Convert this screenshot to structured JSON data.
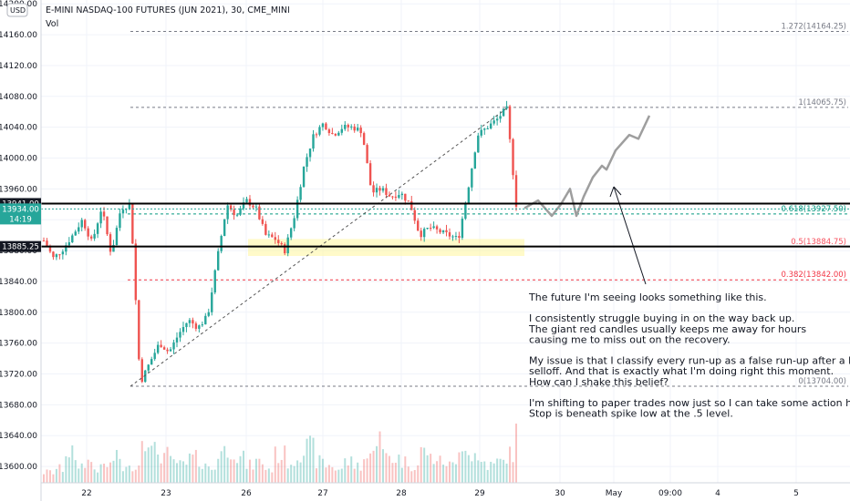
{
  "title": "E-MINI NASDAQ-100 FUTURES (JUN 2021), 30, CME_MINI",
  "vol_label": "Vol",
  "currency": "USD",
  "chart_data": {
    "type": "candlestick",
    "symbol": "E-MINI NASDAQ-100 FUTURES (JUN 2021), 30, CME_MINI",
    "timeframe": "30",
    "xlabels": [
      "22",
      "23",
      "26",
      "27",
      "28",
      "29",
      "30",
      "May",
      "09:00",
      "4",
      "5"
    ],
    "yticks": [
      13600,
      13640,
      13680,
      13720,
      13760,
      13800,
      13840,
      13880,
      13920,
      13960,
      14000,
      14040,
      14080,
      14120,
      14160,
      14200
    ],
    "ylim": [
      13580,
      14205
    ],
    "price_labels": [
      {
        "text": "13941.00",
        "value": 13941.0,
        "style": "dark"
      },
      {
        "text": "13934.00",
        "value": 13934.0,
        "style": "green"
      },
      {
        "text": "14:19",
        "value": 13920,
        "style": "green"
      },
      {
        "text": "13885.25",
        "value": 13885.25,
        "style": "dark"
      }
    ],
    "fib_levels": [
      {
        "label": "1.272(14164.25)",
        "value": 14164.25,
        "color": "#787b86"
      },
      {
        "label": "1(14065.75)",
        "value": 14065.75,
        "color": "#787b86"
      },
      {
        "label": "0.618(13927.50)",
        "value": 13927.5,
        "color": "#089981"
      },
      {
        "label": "0.5(13884.75)",
        "value": 13884.75,
        "color": "#f7525f"
      },
      {
        "label": "0.382(13842.00)",
        "value": 13842.0,
        "color": "#f23645"
      },
      {
        "label": "0(13704.00)",
        "value": 13704.0,
        "color": "#787b86"
      }
    ],
    "horizontal_lines": [
      13941.0,
      13885.25
    ],
    "zone": {
      "from": 13873,
      "to": 13895,
      "color": "#fff59d"
    },
    "projection": "wavy upward path sketched after the last candle",
    "candle_colors": {
      "up": "#26a69a",
      "down": "#ef5350"
    },
    "path_points": [
      [
        0,
        13893
      ],
      [
        1,
        13870
      ],
      [
        2,
        13882
      ],
      [
        3,
        13900
      ],
      [
        4,
        13920
      ],
      [
        5,
        13890
      ],
      [
        6,
        13936
      ],
      [
        7,
        13875
      ],
      [
        8,
        13935
      ],
      [
        9,
        13940
      ],
      [
        10,
        13708
      ],
      [
        11,
        13735
      ],
      [
        12,
        13760
      ],
      [
        13,
        13748
      ],
      [
        14,
        13772
      ],
      [
        15,
        13790
      ],
      [
        16,
        13780
      ],
      [
        17,
        13795
      ],
      [
        18,
        13870
      ],
      [
        19,
        13940
      ],
      [
        20,
        13925
      ],
      [
        21,
        13945
      ],
      [
        22,
        13935
      ],
      [
        23,
        13900
      ],
      [
        24,
        13895
      ],
      [
        25,
        13880
      ],
      [
        26,
        13925
      ],
      [
        27,
        13990
      ],
      [
        28,
        14030
      ],
      [
        29,
        14045
      ],
      [
        30,
        14030
      ],
      [
        31,
        14040
      ],
      [
        32,
        14040
      ],
      [
        33,
        14035
      ],
      [
        34,
        13955
      ],
      [
        35,
        13960
      ],
      [
        36,
        13950
      ],
      [
        37,
        13955
      ],
      [
        38,
        13940
      ],
      [
        39,
        13900
      ],
      [
        40,
        13910
      ],
      [
        41,
        13905
      ],
      [
        42,
        13900
      ],
      [
        43,
        13895
      ],
      [
        44,
        13960
      ],
      [
        45,
        14030
      ],
      [
        46,
        14040
      ],
      [
        47,
        14050
      ],
      [
        48,
        14065
      ],
      [
        49,
        13940
      ]
    ],
    "volume_relative": [
      0.15,
      0.2,
      0.45,
      0.25,
      0.3,
      0.2,
      0.25,
      0.35,
      0.2,
      0.25,
      0.7,
      0.45,
      0.4,
      0.3,
      0.25,
      0.35,
      0.3,
      0.2,
      0.45,
      0.5,
      0.35,
      0.25,
      0.3,
      0.2,
      0.4,
      0.3,
      0.45,
      0.5,
      0.3,
      0.25,
      0.2,
      0.3,
      0.25,
      0.35,
      0.65,
      0.4,
      0.35,
      0.3,
      0.25,
      0.45,
      0.35,
      0.3,
      0.25,
      0.6,
      0.4,
      0.3,
      0.25,
      0.3,
      0.4,
      0.7
    ]
  },
  "note": {
    "lines": [
      "The future I'm seeing looks something like this.",
      "",
      "I consistently struggle buying in on the way back up.",
      "The giant red candles usually keeps me away for hours",
      "causing me to miss out on the recovery.",
      "",
      "My issue is that I classify every run-up as a false run-up after a big",
      "selloff. And that is exactly what I'm doing right this moment.",
      "How can I shake this belief?",
      "",
      "I'm shifting to paper trades now just so I can take some action here.",
      "Stop is beneath spike low at the .5 level."
    ]
  }
}
